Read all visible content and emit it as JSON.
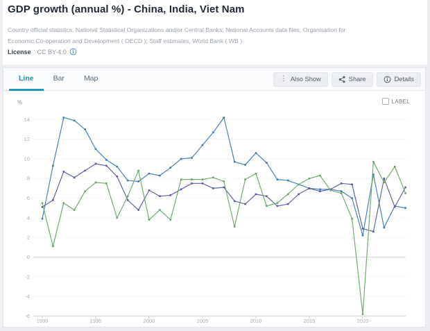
{
  "header": {
    "title": "GDP growth (annual %) - China, India, Viet Nam",
    "source_line1": "Country official statistics, National Statistical Organizations and/or Central Banks; National Accounts data files, Organisation for",
    "source_line2": "Economic Co-operation and Development ( OECD ); Staff estimates, World Bank ( WB )",
    "license_label": "License",
    "license_value": ": CC BY-4.0"
  },
  "toolbar": {
    "tabs": [
      {
        "label": "Line",
        "active": true
      },
      {
        "label": "Bar",
        "active": false
      },
      {
        "label": "Map",
        "active": false
      }
    ],
    "buttons": [
      {
        "label": "Also Show",
        "icon": "kebab-icon"
      },
      {
        "label": "Share",
        "icon": "share-icon"
      },
      {
        "label": "Details",
        "icon": "info-icon"
      }
    ]
  },
  "chart": {
    "unit_label": "%",
    "label_toggle_text": "LABEL",
    "label_toggle_checked": false
  },
  "colors": {
    "accent_tab": "#2498b6",
    "license_info": "#4b8fd2",
    "china_line": "#3d7ab1",
    "india_line": "#6ba567",
    "vietnam_line": "#585c9e"
  },
  "chart_data": {
    "type": "line",
    "title": "GDP growth (annual %)",
    "xlabel": "",
    "ylabel": "%",
    "ylim": [
      -6,
      15
    ],
    "yticks": [
      14,
      12,
      10,
      8,
      6,
      4,
      2,
      0,
      -2,
      -4,
      -6
    ],
    "xticks": [
      1990,
      1995,
      2000,
      2005,
      2010,
      2015,
      2020
    ],
    "grid": true,
    "legend_position": "none",
    "x": [
      1990,
      1991,
      1992,
      1993,
      1994,
      1995,
      1996,
      1997,
      1998,
      1999,
      2000,
      2001,
      2002,
      2003,
      2004,
      2005,
      2006,
      2007,
      2008,
      2009,
      2010,
      2011,
      2012,
      2013,
      2014,
      2015,
      2016,
      2017,
      2018,
      2019,
      2020,
      2021,
      2022,
      2023,
      2024
    ],
    "series": [
      {
        "name": "China",
        "color": "#3d7ab1",
        "values": [
          3.9,
          9.3,
          14.2,
          13.9,
          13.0,
          11.0,
          9.9,
          9.2,
          7.8,
          7.7,
          8.5,
          8.3,
          9.1,
          10.0,
          10.1,
          11.4,
          12.7,
          14.2,
          9.7,
          9.4,
          10.6,
          9.6,
          7.9,
          7.8,
          7.4,
          7.0,
          6.9,
          6.9,
          6.7,
          6.0,
          2.2,
          8.4,
          3.0,
          5.2,
          5.0
        ]
      },
      {
        "name": "Viet Nam",
        "color": "#585c9e",
        "values": [
          5.1,
          5.8,
          8.7,
          8.1,
          8.8,
          9.5,
          9.3,
          8.2,
          5.8,
          4.8,
          6.8,
          6.2,
          6.3,
          6.9,
          7.5,
          7.5,
          7.0,
          7.1,
          5.7,
          5.4,
          6.4,
          6.2,
          5.2,
          5.4,
          6.4,
          7.0,
          6.7,
          6.9,
          7.5,
          7.4,
          2.9,
          2.6,
          8.0,
          5.1,
          7.1
        ]
      },
      {
        "name": "India",
        "color": "#6ba567",
        "values": [
          5.5,
          1.1,
          5.5,
          4.8,
          6.7,
          7.6,
          7.5,
          4.0,
          6.2,
          8.8,
          3.8,
          4.8,
          3.8,
          7.9,
          7.9,
          7.9,
          8.1,
          7.7,
          3.1,
          7.9,
          8.5,
          5.2,
          5.5,
          6.4,
          7.4,
          8.0,
          8.3,
          6.8,
          6.5,
          3.9,
          -5.8,
          9.7,
          7.6,
          9.2,
          6.5
        ]
      }
    ]
  }
}
